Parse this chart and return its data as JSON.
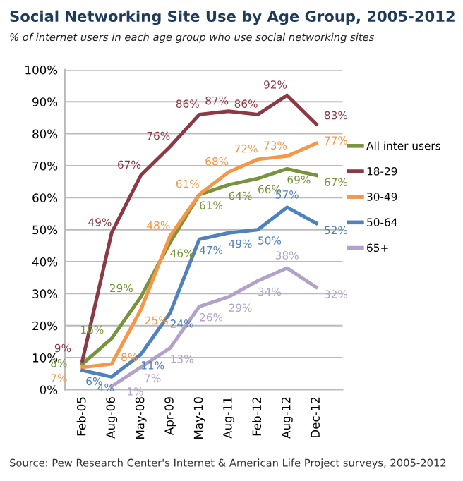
{
  "chart_data": {
    "type": "line",
    "title": "Social Networking Site Use by Age Group, 2005-2012",
    "subtitle": "% of internet users in each age group who use social networking sites",
    "categories": [
      "Feb-05",
      "Aug-06",
      "May-08",
      "Apr-09",
      "May-10",
      "Aug-11",
      "Feb-12",
      "Aug-12",
      "Dec-12"
    ],
    "series": [
      {
        "name": "All inter users",
        "color": "#77933c",
        "values": [
          8,
          16,
          29,
          46,
          61,
          64,
          66,
          69,
          67
        ],
        "value_labels": [
          "8%",
          "16%",
          "29%",
          "46%",
          "61%",
          "64%",
          "66%",
          "69%",
          "67%"
        ]
      },
      {
        "name": "18-29",
        "color": "#8b3a45",
        "values": [
          9,
          49,
          67,
          76,
          86,
          87,
          86,
          92,
          83
        ],
        "value_labels": [
          "9%",
          "49%",
          "67%",
          "76%",
          "86%",
          "87%",
          "86%",
          "92%",
          "83%"
        ]
      },
      {
        "name": "30-49",
        "color": "#f79646",
        "values": [
          7,
          8,
          25,
          48,
          61,
          68,
          72,
          73,
          77
        ],
        "value_labels": [
          "7%",
          "8%",
          "25%",
          "48%",
          "61%",
          "68%",
          "72%",
          "73%",
          "77%"
        ]
      },
      {
        "name": "50-64",
        "color": "#4f81bd",
        "values": [
          6,
          4,
          11,
          24,
          47,
          49,
          50,
          57,
          52
        ],
        "value_labels": [
          "6%",
          "4%",
          "11%",
          "24%",
          "47%",
          "49%",
          "50%",
          "57%",
          "52%"
        ]
      },
      {
        "name": "65+",
        "color": "#b3a2c7",
        "values": [
          null,
          1,
          7,
          13,
          26,
          29,
          34,
          38,
          32
        ],
        "value_labels": [
          null,
          "1%",
          "7%",
          "13%",
          "26%",
          "29%",
          "34%",
          "38%",
          "32%"
        ]
      }
    ],
    "ylim": [
      0,
      100
    ],
    "yticks": [
      {
        "value": 0,
        "label": "0%"
      },
      {
        "value": 10,
        "label": "10%"
      },
      {
        "value": 20,
        "label": "20%"
      },
      {
        "value": 30,
        "label": "30%"
      },
      {
        "value": 40,
        "label": "40%"
      },
      {
        "value": 50,
        "label": "50%"
      },
      {
        "value": 60,
        "label": "60%"
      },
      {
        "value": 70,
        "label": "70%"
      },
      {
        "value": 80,
        "label": "80%"
      },
      {
        "value": 90,
        "label": "90%"
      },
      {
        "value": 100,
        "label": "100%"
      }
    ],
    "grid": "y",
    "legend": "right",
    "marker": "none",
    "line_style": "solid",
    "annotations": [
      "Source: Pew Research Center's Internet & American Life Project surveys, 2005-2012"
    ]
  }
}
